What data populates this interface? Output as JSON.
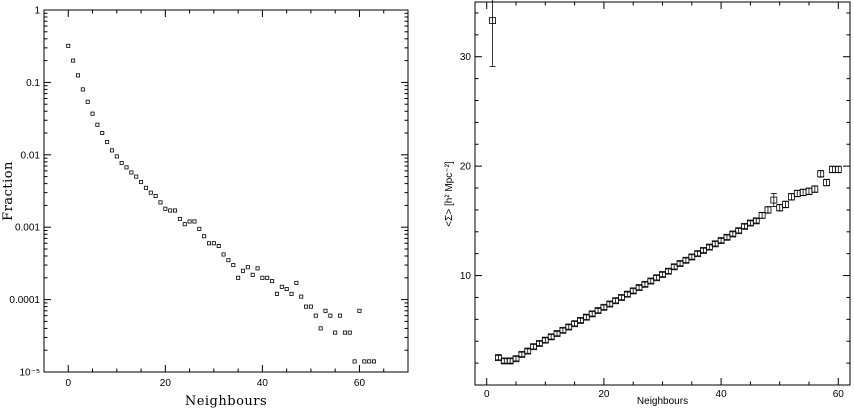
{
  "chart_data": [
    {
      "type": "scatter",
      "title": "",
      "xlabel": "Neighbours",
      "ylabel": "Fraction",
      "xlim": [
        -5,
        70
      ],
      "ylim": [
        1e-05,
        1
      ],
      "yscale": "log",
      "x_ticks": [
        0,
        20,
        40,
        60
      ],
      "y_ticks": [
        {
          "value": 1,
          "label": "1"
        },
        {
          "value": 0.1,
          "label": "0.1"
        },
        {
          "value": 0.01,
          "label": "0.01"
        },
        {
          "value": 0.001,
          "label": "0.001"
        },
        {
          "value": 0.0001,
          "label": "0.0001"
        },
        {
          "value": 1e-05,
          "label": "10⁻⁵"
        }
      ],
      "x": [
        0,
        1,
        2,
        3,
        4,
        5,
        6,
        7,
        8,
        9,
        10,
        11,
        12,
        13,
        14,
        15,
        16,
        17,
        18,
        19,
        20,
        21,
        22,
        23,
        24,
        25,
        26,
        27,
        28,
        29,
        30,
        31,
        32,
        33,
        34,
        35,
        36,
        37,
        38,
        39,
        40,
        41,
        42,
        43,
        44,
        45,
        46,
        47,
        48,
        49,
        50,
        51,
        52,
        53,
        54,
        55,
        56,
        57,
        58,
        59,
        60,
        61,
        62,
        63
      ],
      "y": [
        0.32,
        0.2,
        0.125,
        0.08,
        0.054,
        0.037,
        0.026,
        0.02,
        0.015,
        0.0115,
        0.0095,
        0.0077,
        0.0067,
        0.0057,
        0.005,
        0.0042,
        0.0035,
        0.003,
        0.0027,
        0.0022,
        0.0018,
        0.0017,
        0.0017,
        0.0013,
        0.0011,
        0.0012,
        0.0012,
        0.00095,
        0.00075,
        0.0006,
        0.0006,
        0.00055,
        0.00042,
        0.00035,
        0.0003,
        0.0002,
        0.00025,
        0.00028,
        0.00022,
        0.00027,
        0.0002,
        0.0002,
        0.00018,
        0.00012,
        0.00015,
        0.00014,
        0.00012,
        0.00017,
        0.00011,
        8e-05,
        8e-05,
        6e-05,
        4e-05,
        7e-05,
        6e-05,
        3.5e-05,
        6e-05,
        3.5e-05,
        3.5e-05,
        1.4e-05,
        7e-05,
        1.4e-05,
        1.4e-05,
        1.4e-05
      ]
    },
    {
      "type": "scatter",
      "title": "",
      "xlabel": "Neighbours",
      "ylabel": "<Σ> [h² Mpc⁻²]",
      "xlim": [
        -2,
        62
      ],
      "ylim": [
        0,
        35
      ],
      "x_ticks": [
        0,
        20,
        40,
        60
      ],
      "y_ticks": [
        10,
        20,
        30
      ],
      "x": [
        1,
        2,
        3,
        4,
        5,
        6,
        7,
        8,
        9,
        10,
        11,
        12,
        13,
        14,
        15,
        16,
        17,
        18,
        19,
        20,
        21,
        22,
        23,
        24,
        25,
        26,
        27,
        28,
        29,
        30,
        31,
        32,
        33,
        34,
        35,
        36,
        37,
        38,
        39,
        40,
        41,
        42,
        43,
        44,
        45,
        46,
        47,
        48,
        49,
        50,
        51,
        52,
        53,
        54,
        55,
        56,
        57,
        58,
        59,
        60
      ],
      "y": [
        33.3,
        2.5,
        2.2,
        2.2,
        2.4,
        2.8,
        3.1,
        3.5,
        3.8,
        4.1,
        4.4,
        4.7,
        5.0,
        5.3,
        5.6,
        5.9,
        6.2,
        6.5,
        6.8,
        7.1,
        7.4,
        7.7,
        8.0,
        8.3,
        8.6,
        8.9,
        9.2,
        9.5,
        9.8,
        10.1,
        10.4,
        10.8,
        11.1,
        11.4,
        11.7,
        12.0,
        12.3,
        12.6,
        12.9,
        13.2,
        13.5,
        13.8,
        14.1,
        14.5,
        14.8,
        15.0,
        15.5,
        16.0,
        16.9,
        16.2,
        16.5,
        17.2,
        17.5,
        17.6,
        17.7,
        17.9,
        19.3,
        18.5,
        19.7,
        19.7
      ],
      "yerr": [
        4.2,
        0.2,
        0.2,
        0.2,
        0.2,
        0.2,
        0.2,
        0.2,
        0.2,
        0.2,
        0.2,
        0.2,
        0.2,
        0.2,
        0.2,
        0.2,
        0.2,
        0.2,
        0.2,
        0.2,
        0.2,
        0.2,
        0.2,
        0.2,
        0.2,
        0.2,
        0.2,
        0.2,
        0.2,
        0.2,
        0.2,
        0.2,
        0.2,
        0.2,
        0.2,
        0.2,
        0.2,
        0.2,
        0.2,
        0.2,
        0.2,
        0.2,
        0.2,
        0.2,
        0.2,
        0.2,
        0.25,
        0.3,
        0.6,
        0.3,
        0.3,
        0.3,
        0.3,
        0.3,
        0.3,
        0.3,
        0.3,
        0.3,
        0.3,
        0.3
      ]
    }
  ]
}
